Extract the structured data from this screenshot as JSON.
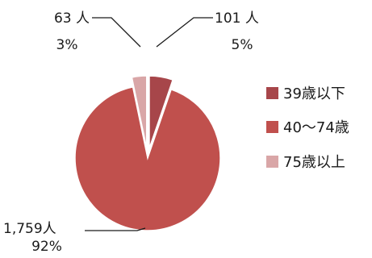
{
  "chart_data": {
    "type": "pie",
    "title": "",
    "categories": [
      "39歳以下",
      "40～74歳",
      "75歳以上"
    ],
    "values": [
      101,
      1759,
      63
    ],
    "value_labels": [
      "101 人",
      "1,759人",
      "63 人"
    ],
    "percent_labels": [
      "5%",
      "92%",
      "3%"
    ],
    "colors": [
      "#a7464a",
      "#c0504d",
      "#d9a6a7"
    ],
    "exploded": true,
    "legend_position": "right"
  }
}
